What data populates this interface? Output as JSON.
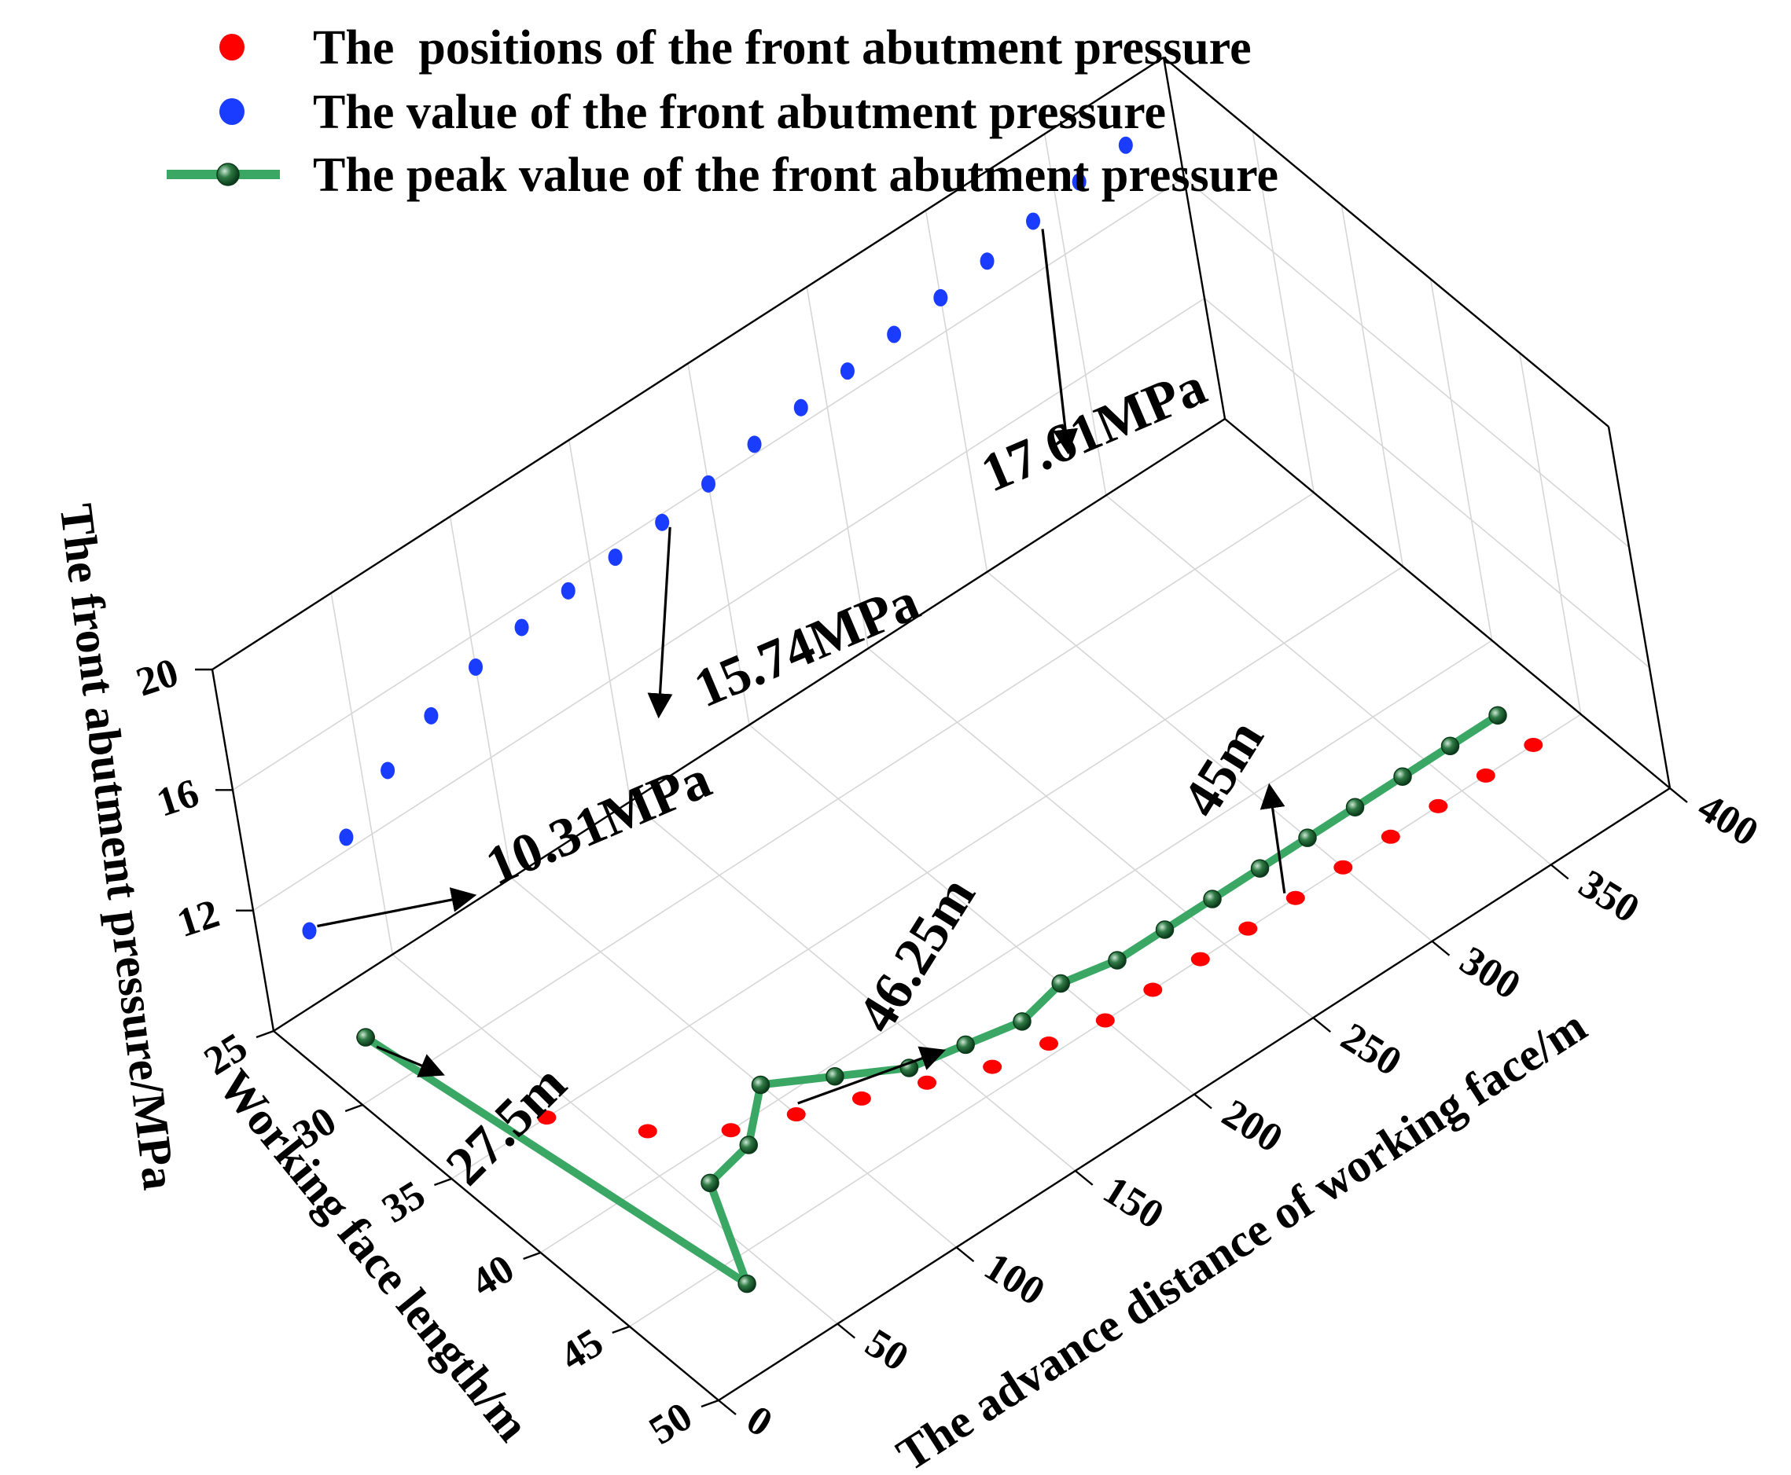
{
  "chart_data": {
    "type": "scatter",
    "legend_position": "top",
    "legend": [
      {
        "label": "The  positions of the front abutment pressure",
        "marker": "dot",
        "color": "#ff0000"
      },
      {
        "label": "The value of the front abutment pressure",
        "marker": "dot",
        "color": "#1a3cff"
      },
      {
        "label": "The peak value of the front abutment pressure",
        "marker": "line-ball",
        "color": "#3aa864"
      }
    ],
    "axes": {
      "x": {
        "label": "The advance distance of working face/m",
        "range": [
          0,
          400
        ],
        "ticks": [
          "0",
          "50",
          "100",
          "150",
          "200",
          "250",
          "300",
          "350",
          "400"
        ]
      },
      "y": {
        "label": "Working face length/m",
        "range": [
          25,
          50
        ],
        "ticks": [
          "25",
          "30",
          "35",
          "40",
          "45",
          "50"
        ]
      },
      "z": {
        "label": "The front abutment pressure/MPa",
        "range": [
          8,
          20
        ],
        "ticks": [
          "12",
          "16",
          "20"
        ]
      }
    },
    "grid": true,
    "series": [
      {
        "name": "The  positions of the front abutment pressure",
        "color": "#ff0000",
        "points": [
          {
            "x": 20,
            "z": 27.5
          },
          {
            "x": 40,
            "z": 35
          },
          {
            "x": 60,
            "z": 38
          },
          {
            "x": 80,
            "z": 40
          },
          {
            "x": 100,
            "z": 41
          },
          {
            "x": 120,
            "z": 42
          },
          {
            "x": 140,
            "z": 43
          },
          {
            "x": 160,
            "z": 44
          },
          {
            "x": 180,
            "z": 44.5
          },
          {
            "x": 200,
            "z": 45
          },
          {
            "x": 220,
            "z": 45
          },
          {
            "x": 240,
            "z": 45
          },
          {
            "x": 260,
            "z": 45
          },
          {
            "x": 280,
            "z": 45
          },
          {
            "x": 300,
            "z": 45
          },
          {
            "x": 320,
            "z": 45
          },
          {
            "x": 340,
            "z": 45
          },
          {
            "x": 360,
            "z": 45
          },
          {
            "x": 380,
            "z": 45
          }
        ]
      },
      {
        "name": "The value of the front abutment pressure",
        "color": "#1a3cff",
        "points": [
          {
            "x": 20,
            "z": 10.31
          },
          {
            "x": 40,
            "z": 12.4
          },
          {
            "x": 60,
            "z": 13.6
          },
          {
            "x": 80,
            "z": 14.4
          },
          {
            "x": 100,
            "z": 15.0
          },
          {
            "x": 120,
            "z": 15.3
          },
          {
            "x": 140,
            "z": 15.5
          },
          {
            "x": 160,
            "z": 15.6
          },
          {
            "x": 180,
            "z": 15.74
          },
          {
            "x": 200,
            "z": 16.0
          },
          {
            "x": 220,
            "z": 16.3
          },
          {
            "x": 240,
            "z": 16.5
          },
          {
            "x": 260,
            "z": 16.7
          },
          {
            "x": 280,
            "z": 16.9
          },
          {
            "x": 300,
            "z": 17.1
          },
          {
            "x": 320,
            "z": 17.3
          },
          {
            "x": 340,
            "z": 17.61
          },
          {
            "x": 360,
            "z": 17.9
          },
          {
            "x": 380,
            "z": 18.1
          }
        ]
      },
      {
        "name": "The peak value of the front abutment pressure",
        "color": "#3aa864",
        "points": [
          {
            "x": 20,
            "y": 27.5
          },
          {
            "x": 40,
            "y": 46.25
          },
          {
            "x": 60,
            "y": 41.5
          },
          {
            "x": 80,
            "y": 41.0
          },
          {
            "x": 100,
            "y": 39.0
          },
          {
            "x": 120,
            "y": 40.5
          },
          {
            "x": 140,
            "y": 42.0
          },
          {
            "x": 160,
            "y": 42.5
          },
          {
            "x": 180,
            "y": 43.0
          },
          {
            "x": 200,
            "y": 42.5
          },
          {
            "x": 220,
            "y": 43.0
          },
          {
            "x": 240,
            "y": 43.0
          },
          {
            "x": 260,
            "y": 43.0
          },
          {
            "x": 280,
            "y": 43.0
          },
          {
            "x": 300,
            "y": 43.0
          },
          {
            "x": 320,
            "y": 43.0
          },
          {
            "x": 340,
            "y": 43.0
          },
          {
            "x": 360,
            "y": 43.0
          },
          {
            "x": 380,
            "y": 43.0
          }
        ]
      }
    ],
    "annotations": [
      {
        "text": "10.31MPa"
      },
      {
        "text": "15.74MPa"
      },
      {
        "text": "17.61MPa"
      },
      {
        "text": "27.5m"
      },
      {
        "text": "46.25m"
      },
      {
        "text": "45m"
      }
    ]
  }
}
